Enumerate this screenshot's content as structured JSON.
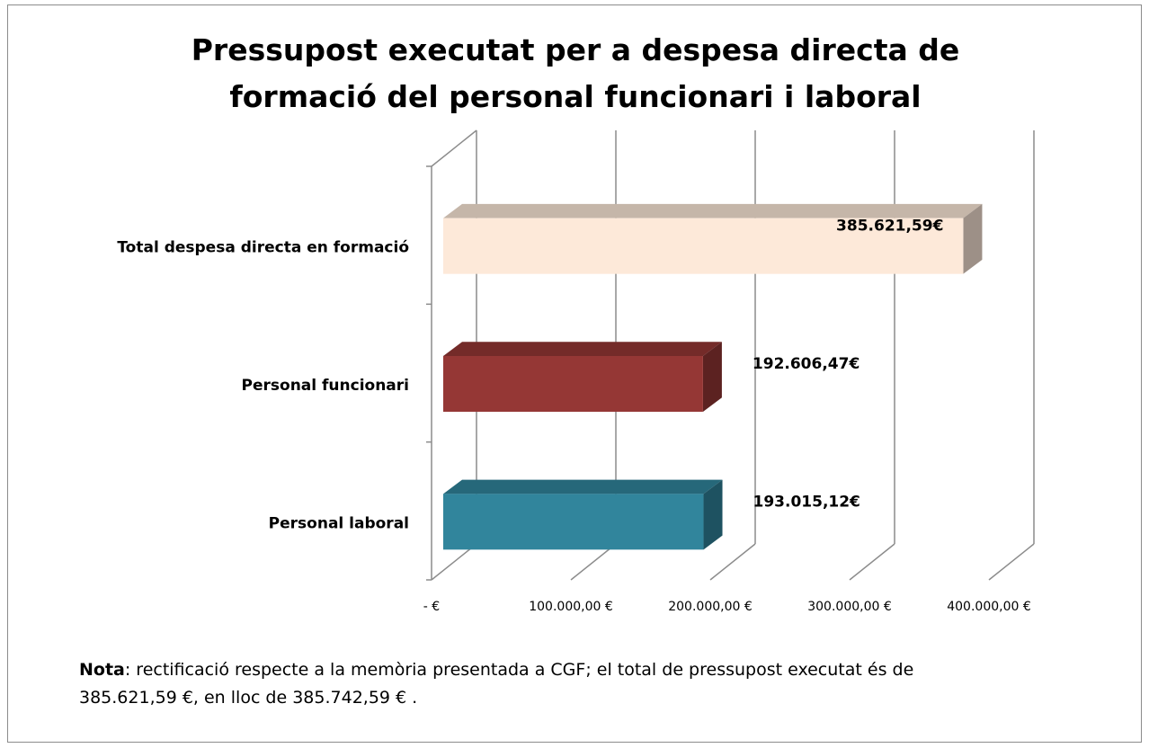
{
  "chart_data": {
    "type": "bar3d_horizontal",
    "title": "Pressupost executat per a despesa directa de formació del personal funcionari i laboral",
    "categories": [
      "Total despesa directa en formació",
      "Personal funcionari",
      "Personal laboral"
    ],
    "values": [
      385621.59,
      192606.47,
      193015.12
    ],
    "value_labels": [
      "385.621,59€",
      "192.606,47€",
      "193.015,12€"
    ],
    "colors": [
      "#fde9d9",
      "#953735",
      "#31859c"
    ],
    "xlim": [
      0,
      400000
    ],
    "xticks": [
      {
        "value": 0,
        "label": "-  €"
      },
      {
        "value": 100000,
        "label": "100.000,00 €"
      },
      {
        "value": 200000,
        "label": "200.000,00 €"
      },
      {
        "value": 300000,
        "label": "300.000,00 €"
      },
      {
        "value": 400000,
        "label": "400.000,00 €"
      }
    ],
    "grid": true
  },
  "note": {
    "label": "Nota",
    "text": ": rectificació respecte a la memòria presentada a CGF; el total de pressupost executat és de 385.621,59 €, en lloc de 385.742,59 € ."
  }
}
